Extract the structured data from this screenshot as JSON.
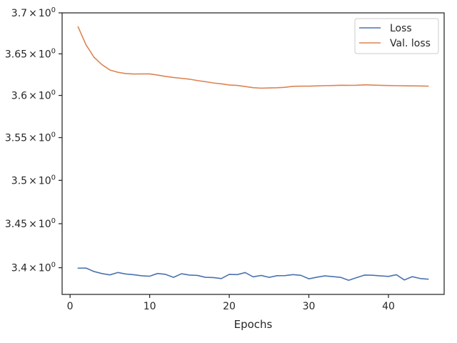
{
  "chart_data": {
    "type": "line",
    "title": "",
    "xlabel": "Epochs",
    "ylabel": "",
    "xlim": [
      0,
      45
    ],
    "ylim": [
      3.37,
      3.7
    ],
    "yscale": "log",
    "grid": false,
    "legend_position": "top-right",
    "x_ticks": [
      0,
      10,
      20,
      30,
      40
    ],
    "x_tick_labels": [
      "0",
      "10",
      "20",
      "30",
      "40"
    ],
    "y_ticks": [
      3.4,
      3.45,
      3.5,
      3.55,
      3.6,
      3.65,
      3.7
    ],
    "y_tick_labels": [
      {
        "mantissa": "3.4",
        "times": "×",
        "base": "10",
        "exp": "0"
      },
      {
        "mantissa": "3.45",
        "times": "×",
        "base": "10",
        "exp": "0"
      },
      {
        "mantissa": "3.5",
        "times": "×",
        "base": "10",
        "exp": "0"
      },
      {
        "mantissa": "3.55",
        "times": "×",
        "base": "10",
        "exp": "0"
      },
      {
        "mantissa": "3.6",
        "times": "×",
        "base": "10",
        "exp": "0"
      },
      {
        "mantissa": "3.65",
        "times": "×",
        "base": "10",
        "exp": "0"
      },
      {
        "mantissa": "3.7",
        "times": "×",
        "base": "10",
        "exp": "0"
      }
    ],
    "x": [
      1,
      2,
      3,
      4,
      5,
      6,
      7,
      8,
      9,
      10,
      11,
      12,
      13,
      14,
      15,
      16,
      17,
      18,
      19,
      20,
      21,
      22,
      23,
      24,
      25,
      26,
      27,
      28,
      29,
      30,
      31,
      32,
      33,
      34,
      35,
      36,
      37,
      38,
      39,
      40,
      41,
      42,
      43,
      44,
      45
    ],
    "series": [
      {
        "name": "Loss",
        "color": "#4c72b0",
        "values": [
          3.3995,
          3.3996,
          3.3957,
          3.3934,
          3.3919,
          3.3946,
          3.3929,
          3.3921,
          3.3909,
          3.3904,
          3.3935,
          3.3925,
          3.3891,
          3.3932,
          3.3917,
          3.3913,
          3.3892,
          3.3889,
          3.3878,
          3.3925,
          3.3922,
          3.3945,
          3.3897,
          3.3913,
          3.3891,
          3.391,
          3.3911,
          3.3922,
          3.3914,
          3.3875,
          3.3893,
          3.3908,
          3.39,
          3.3891,
          3.3858,
          3.3888,
          3.3917,
          3.3915,
          3.3908,
          3.3902,
          3.3921,
          3.3862,
          3.3899,
          3.3878,
          3.3871
        ]
      },
      {
        "name": "Val. loss",
        "color": "#dd8452",
        "values": [
          3.683,
          3.661,
          3.646,
          3.637,
          3.6305,
          3.6278,
          3.6262,
          3.6257,
          3.6258,
          3.6258,
          3.6244,
          3.6228,
          3.6215,
          3.6205,
          3.6195,
          3.6178,
          3.6165,
          3.6149,
          3.6139,
          3.6125,
          3.612,
          3.6107,
          3.6093,
          3.6087,
          3.609,
          3.6092,
          3.6097,
          3.6109,
          3.6111,
          3.6111,
          3.6114,
          3.6117,
          3.6119,
          3.6122,
          3.6121,
          3.6122,
          3.6127,
          3.6124,
          3.6121,
          3.6119,
          3.6117,
          3.6115,
          3.6114,
          3.6113,
          3.6111
        ]
      }
    ]
  }
}
